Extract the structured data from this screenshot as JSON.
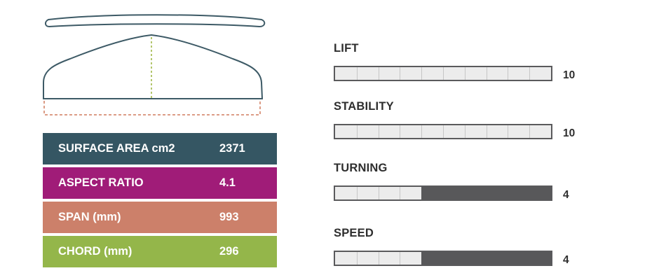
{
  "colors": {
    "outline": "#3d5a66",
    "center_line": "#9ab43c",
    "span_dashes": "#d07c5e",
    "bar_border": "#5a5a5c",
    "bar_light": "#ececec",
    "bar_dark": "#58585a"
  },
  "specs": [
    {
      "label": "SURFACE AREA cm2",
      "value": "2371",
      "color": "#355663"
    },
    {
      "label": "ASPECT RATIO",
      "value": "4.1",
      "color": "#a01c78"
    },
    {
      "label": "SPAN (mm)",
      "value": "993",
      "color": "#cc806a"
    },
    {
      "label": "CHORD (mm)",
      "value": "296",
      "color": "#94b64a"
    }
  ],
  "ratings": [
    {
      "label": "LIFT",
      "value": "10",
      "score": 10
    },
    {
      "label": "STABILITY",
      "value": "10",
      "score": 10
    },
    {
      "label": "TURNING",
      "value": "4",
      "score": 4
    },
    {
      "label": "SPEED",
      "value": "4",
      "score": 4
    }
  ],
  "rating_scale_max": 10
}
